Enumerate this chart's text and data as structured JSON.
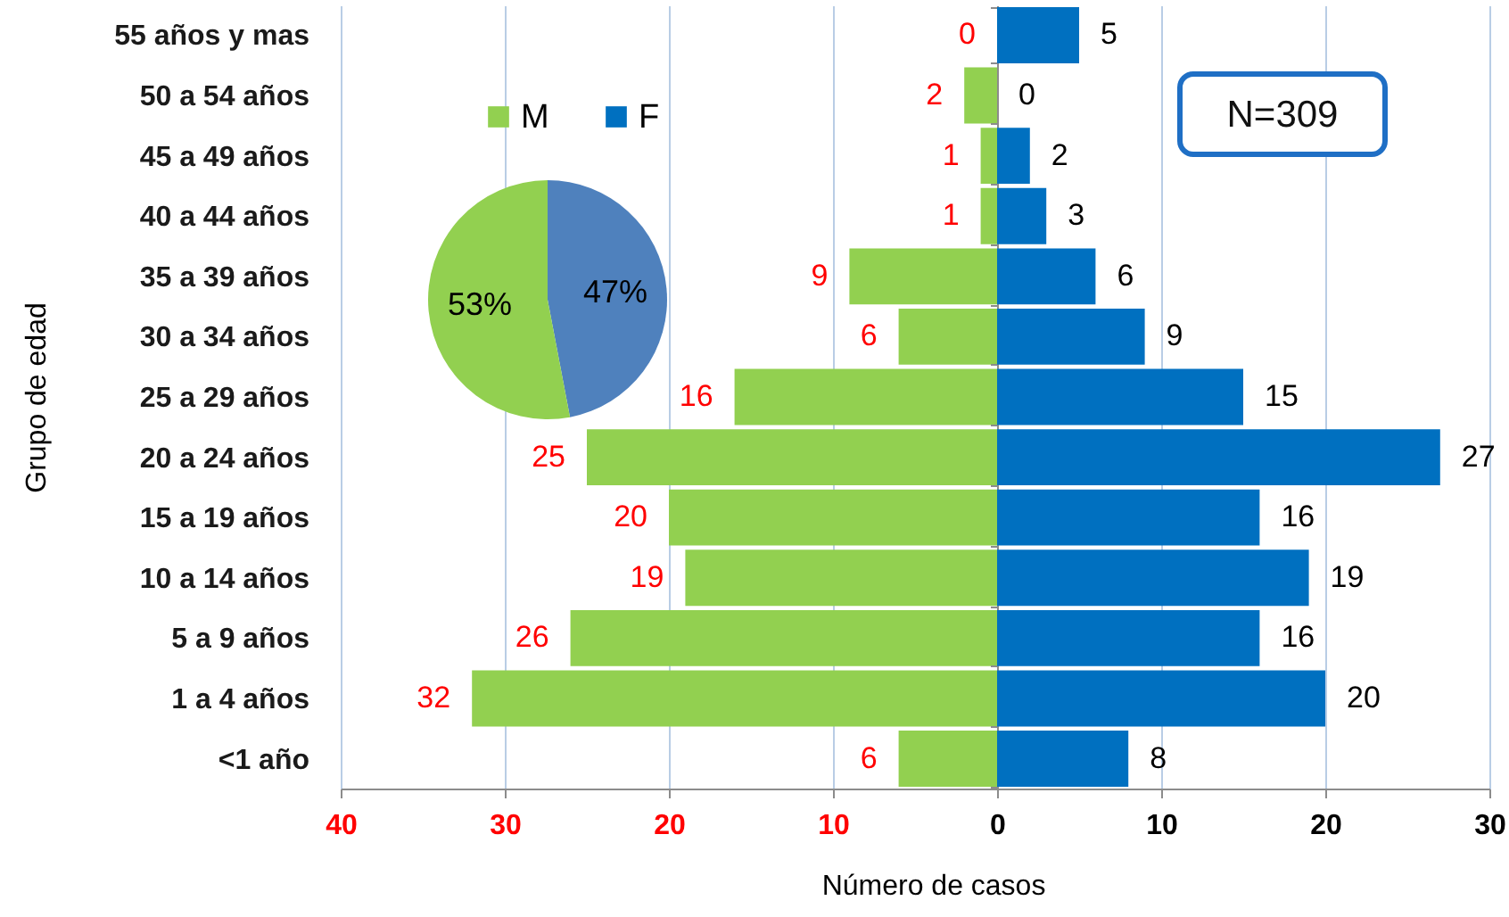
{
  "chart_data": [
    {
      "type": "bar",
      "orientation": "horizontal",
      "categories": [
        "55 años y mas",
        "50 a 54 años",
        "45 a 49 años",
        "40 a 44 años",
        "35 a 39 años",
        "30 a 34 años",
        "25 a 29 años",
        "20 a 24 años",
        "15 a 19 años",
        "10 a 14 años",
        "5 a 9 años",
        "1 a 4 años",
        "<1 año"
      ],
      "series": [
        {
          "name": "M",
          "color": "#92d050",
          "values": [
            0,
            2,
            1,
            1,
            9,
            6,
            16,
            25,
            20,
            19,
            26,
            32,
            6
          ]
        }
      ],
      "data_labels": true,
      "xlim": [
        40,
        0
      ],
      "xticks": [
        40,
        30,
        20,
        10,
        {
          "value": 0,
          "label": null
        }
      ],
      "xlabel": "Número de casos",
      "ylabel": "Grupo de edad",
      "grid": "x",
      "legend": "top left"
    },
    {
      "type": "bar",
      "orientation": "horizontal",
      "categories": [
        null,
        null,
        null,
        null,
        null,
        null,
        null,
        null,
        null,
        null,
        null,
        null,
        null
      ],
      "series": [
        {
          "name": "F",
          "color": "#0070c0",
          "values": [
            5,
            0,
            2,
            3,
            6,
            9,
            15,
            27,
            16,
            19,
            16,
            20,
            8
          ]
        }
      ],
      "data_labels": true,
      "xlim": [
        0,
        30
      ],
      "xticks": [
        0,
        10,
        20,
        30
      ],
      "grid": "x",
      "legend": "top left",
      "annotations": [
        "N=309"
      ]
    },
    {
      "type": "pie",
      "categories": [
        null,
        null
      ],
      "values": [
        47,
        53
      ],
      "colors": [
        "#4f81bd",
        "#92d050"
      ],
      "value_labels": [
        "47%",
        "53%"
      ]
    }
  ]
}
